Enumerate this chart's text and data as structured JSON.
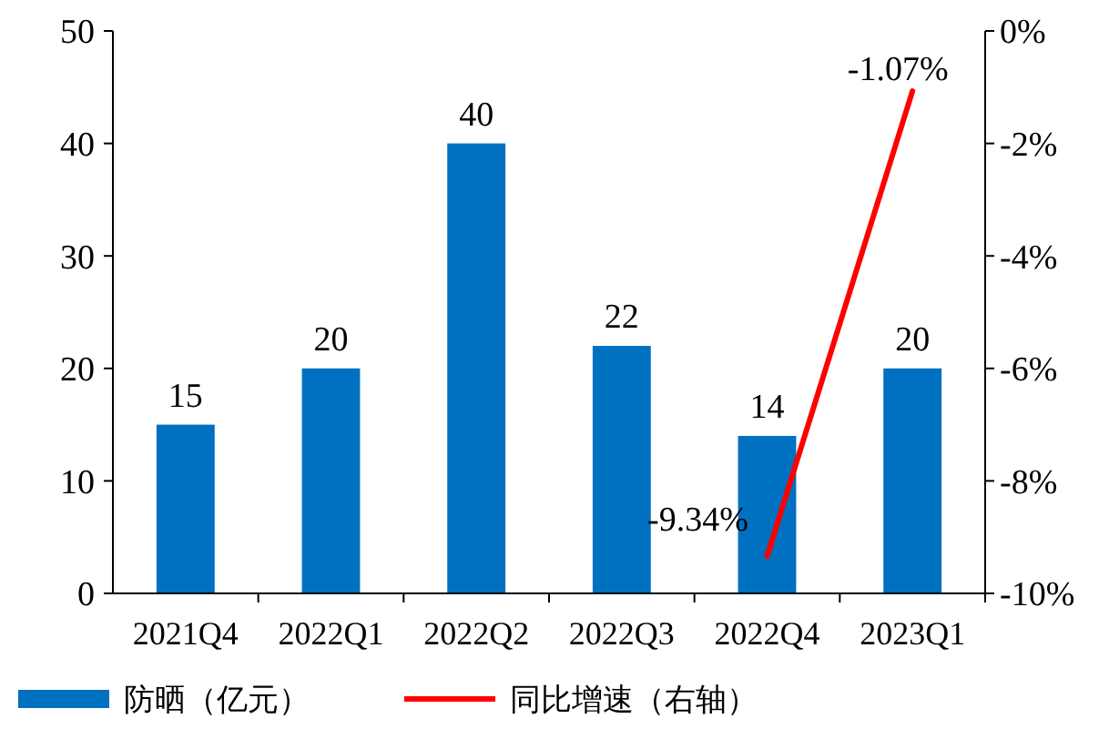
{
  "chart_data": {
    "type": "bar",
    "categories": [
      "2021Q4",
      "2022Q1",
      "2022Q2",
      "2022Q3",
      "2022Q4",
      "2023Q1"
    ],
    "series": [
      {
        "name": "防晒（亿元）",
        "color": "#0070c0",
        "values": [
          15,
          20,
          40,
          22,
          14,
          20
        ],
        "data_labels": true
      },
      {
        "name": "同比增速（右轴）",
        "type": "line",
        "axis": "y2",
        "color": "#ff0000",
        "values": [
          null,
          null,
          null,
          null,
          -9.34,
          -1.07
        ],
        "value_labels": [
          null,
          null,
          null,
          null,
          "-9.34%",
          "-1.07%"
        ]
      }
    ],
    "ylim": [
      0,
      50
    ],
    "yticks": [
      0,
      10,
      20,
      30,
      40,
      50
    ],
    "y2lim": [
      -10,
      0
    ],
    "y2ticks": [
      {
        "value": -10,
        "label": "-10%"
      },
      {
        "value": -8,
        "label": "-8%"
      },
      {
        "value": -6,
        "label": "-6%"
      },
      {
        "value": -4,
        "label": "-4%"
      },
      {
        "value": -2,
        "label": "-2%"
      },
      {
        "value": 0,
        "label": "0%"
      }
    ],
    "grid": false,
    "legend": "bottom",
    "marker": "none",
    "line_style": "solid"
  }
}
